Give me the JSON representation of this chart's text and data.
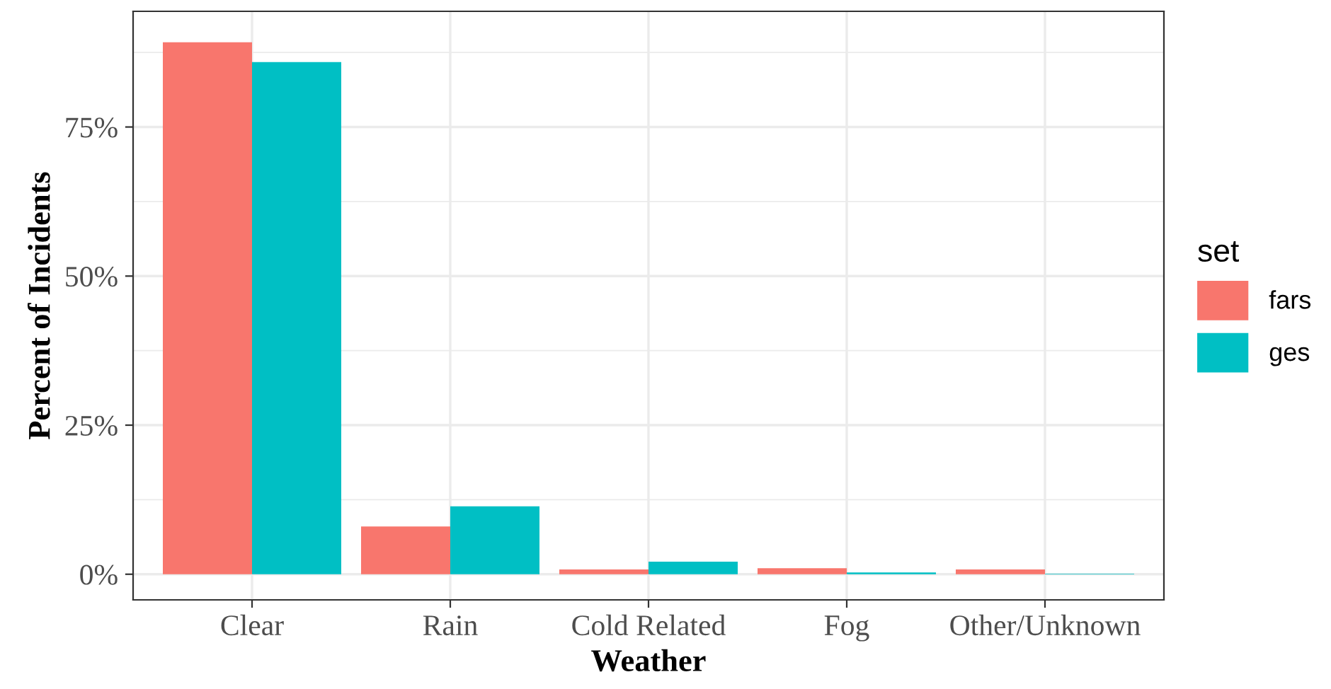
{
  "chart_data": {
    "type": "bar",
    "xlabel": "Weather",
    "ylabel": "Percent of Incidents",
    "legend_title": "set",
    "categories": [
      "Clear",
      "Rain",
      "Cold Related",
      "Fog",
      "Other/Unknown"
    ],
    "series": [
      {
        "name": "fars",
        "color": "#f8766d",
        "values": [
          89.2,
          8.0,
          0.8,
          1.0,
          0.8
        ]
      },
      {
        "name": "ges",
        "color": "#00bfc4",
        "values": [
          85.9,
          11.4,
          2.1,
          0.3,
          0.1
        ]
      }
    ],
    "ylim": [
      -4.3,
      94.4
    ],
    "yticks": [
      {
        "value": 0,
        "label": "0%"
      },
      {
        "value": 25,
        "label": "25%"
      },
      {
        "value": 50,
        "label": "50%"
      },
      {
        "value": 75,
        "label": "75%"
      }
    ],
    "grid": true,
    "legend": "right"
  }
}
